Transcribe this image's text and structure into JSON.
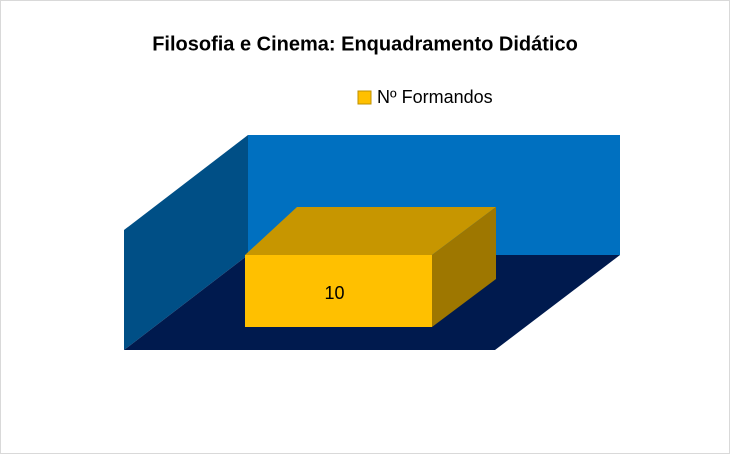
{
  "chart_data": {
    "type": "bar",
    "title": "Filosofia e Cinema: Enquadramento Didático",
    "categories": [
      null
    ],
    "series": [
      {
        "name": "Nº Formandos",
        "color": "#ffc000",
        "values": [
          10
        ]
      }
    ]
  }
}
